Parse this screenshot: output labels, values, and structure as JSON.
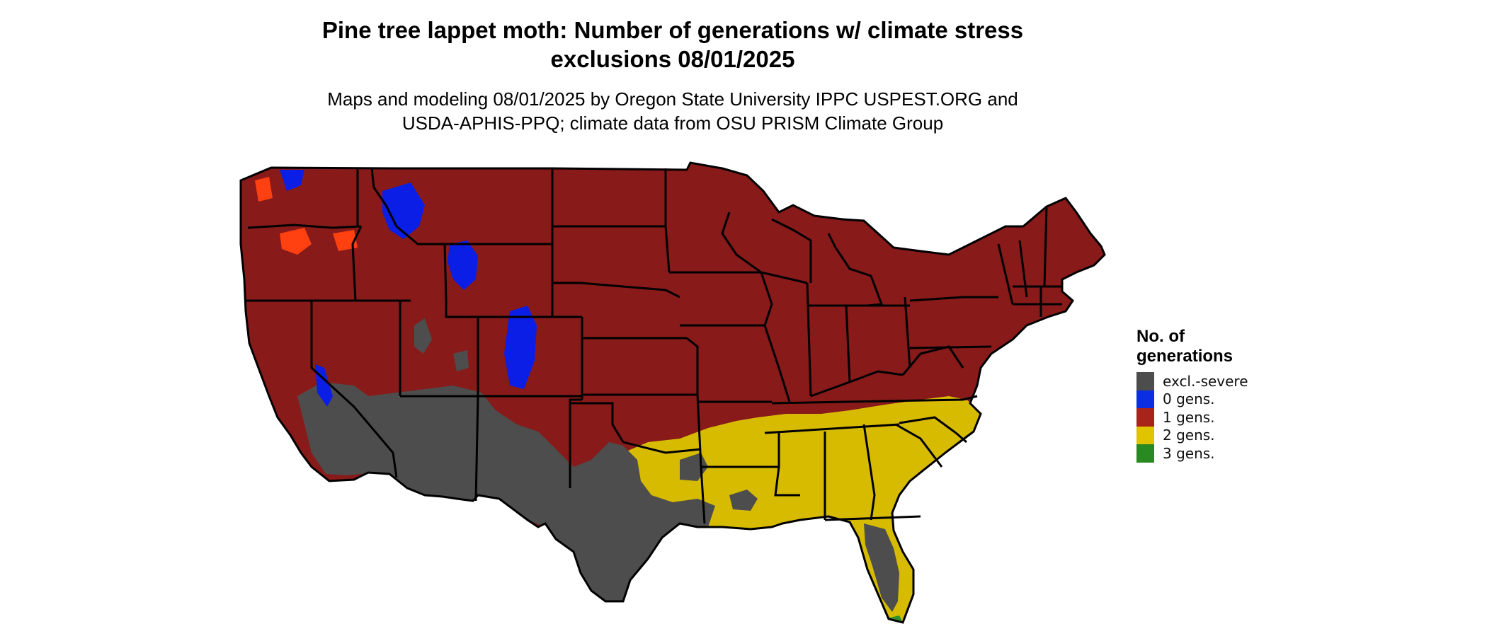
{
  "title": {
    "line1": "Pine tree lappet moth: Number of generations w/ climate stress",
    "line2": "exclusions 08/01/2025"
  },
  "subtitle": {
    "line1": "Maps and modeling 08/01/2025 by Oregon State University IPPC USPEST.ORG and",
    "line2": "USDA-APHIS-PPQ; climate data from OSU PRISM Climate Group"
  },
  "legend": {
    "title_line1": "No. of",
    "title_line2": "generations",
    "items": [
      {
        "label": "excl.-severe",
        "color": "#4d4d4d"
      },
      {
        "label": "0 gens.",
        "color": "#0a2fe0"
      },
      {
        "label": "1 gens.",
        "color": "#a8231a"
      },
      {
        "label": "2 gens.",
        "color": "#e0c400"
      },
      {
        "label": "3 gens.",
        "color": "#2a8a22"
      }
    ]
  },
  "map_colors": {
    "one_gen": "#881a1a",
    "two_gen": "#d6bb00",
    "excluded": "#4d4d4d",
    "zero_gen": "#0a1ee6",
    "edge": "#ff4010",
    "three_gen": "#2f8f2a",
    "border": "#000000"
  }
}
